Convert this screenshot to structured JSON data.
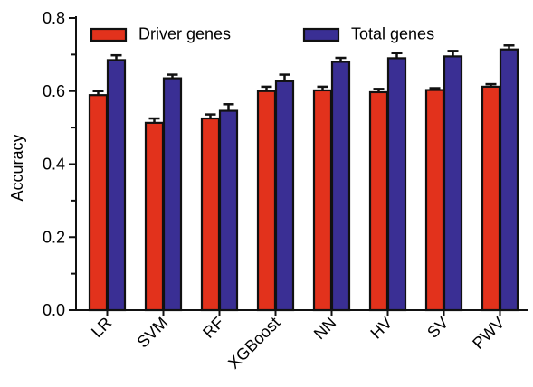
{
  "chart_data": {
    "type": "bar",
    "title": "",
    "xlabel": "",
    "ylabel": "Accuracy",
    "ylim": [
      0,
      0.8
    ],
    "yticks": [
      0.0,
      0.2,
      0.4,
      0.6,
      0.8
    ],
    "ytick_labels": [
      "0.0",
      "0.2",
      "0.4",
      "0.6",
      "0.8"
    ],
    "y_minor_ticks": true,
    "grid": false,
    "legend_position": "top",
    "categories": [
      "LR",
      "SVM",
      "RF",
      "XGBoost",
      "NN",
      "HV",
      "SV",
      "PWV"
    ],
    "series": [
      {
        "name": "Driver genes",
        "color": "#e2321c",
        "values": [
          0.589,
          0.513,
          0.525,
          0.6,
          0.602,
          0.597,
          0.603,
          0.612
        ],
        "errors": [
          0.011,
          0.012,
          0.011,
          0.012,
          0.01,
          0.009,
          0.005,
          0.007
        ]
      },
      {
        "name": "Total genes",
        "color": "#3a2f94",
        "values": [
          0.685,
          0.635,
          0.546,
          0.627,
          0.68,
          0.69,
          0.695,
          0.714
        ],
        "errors": [
          0.013,
          0.01,
          0.018,
          0.018,
          0.011,
          0.014,
          0.015,
          0.011
        ]
      }
    ]
  }
}
